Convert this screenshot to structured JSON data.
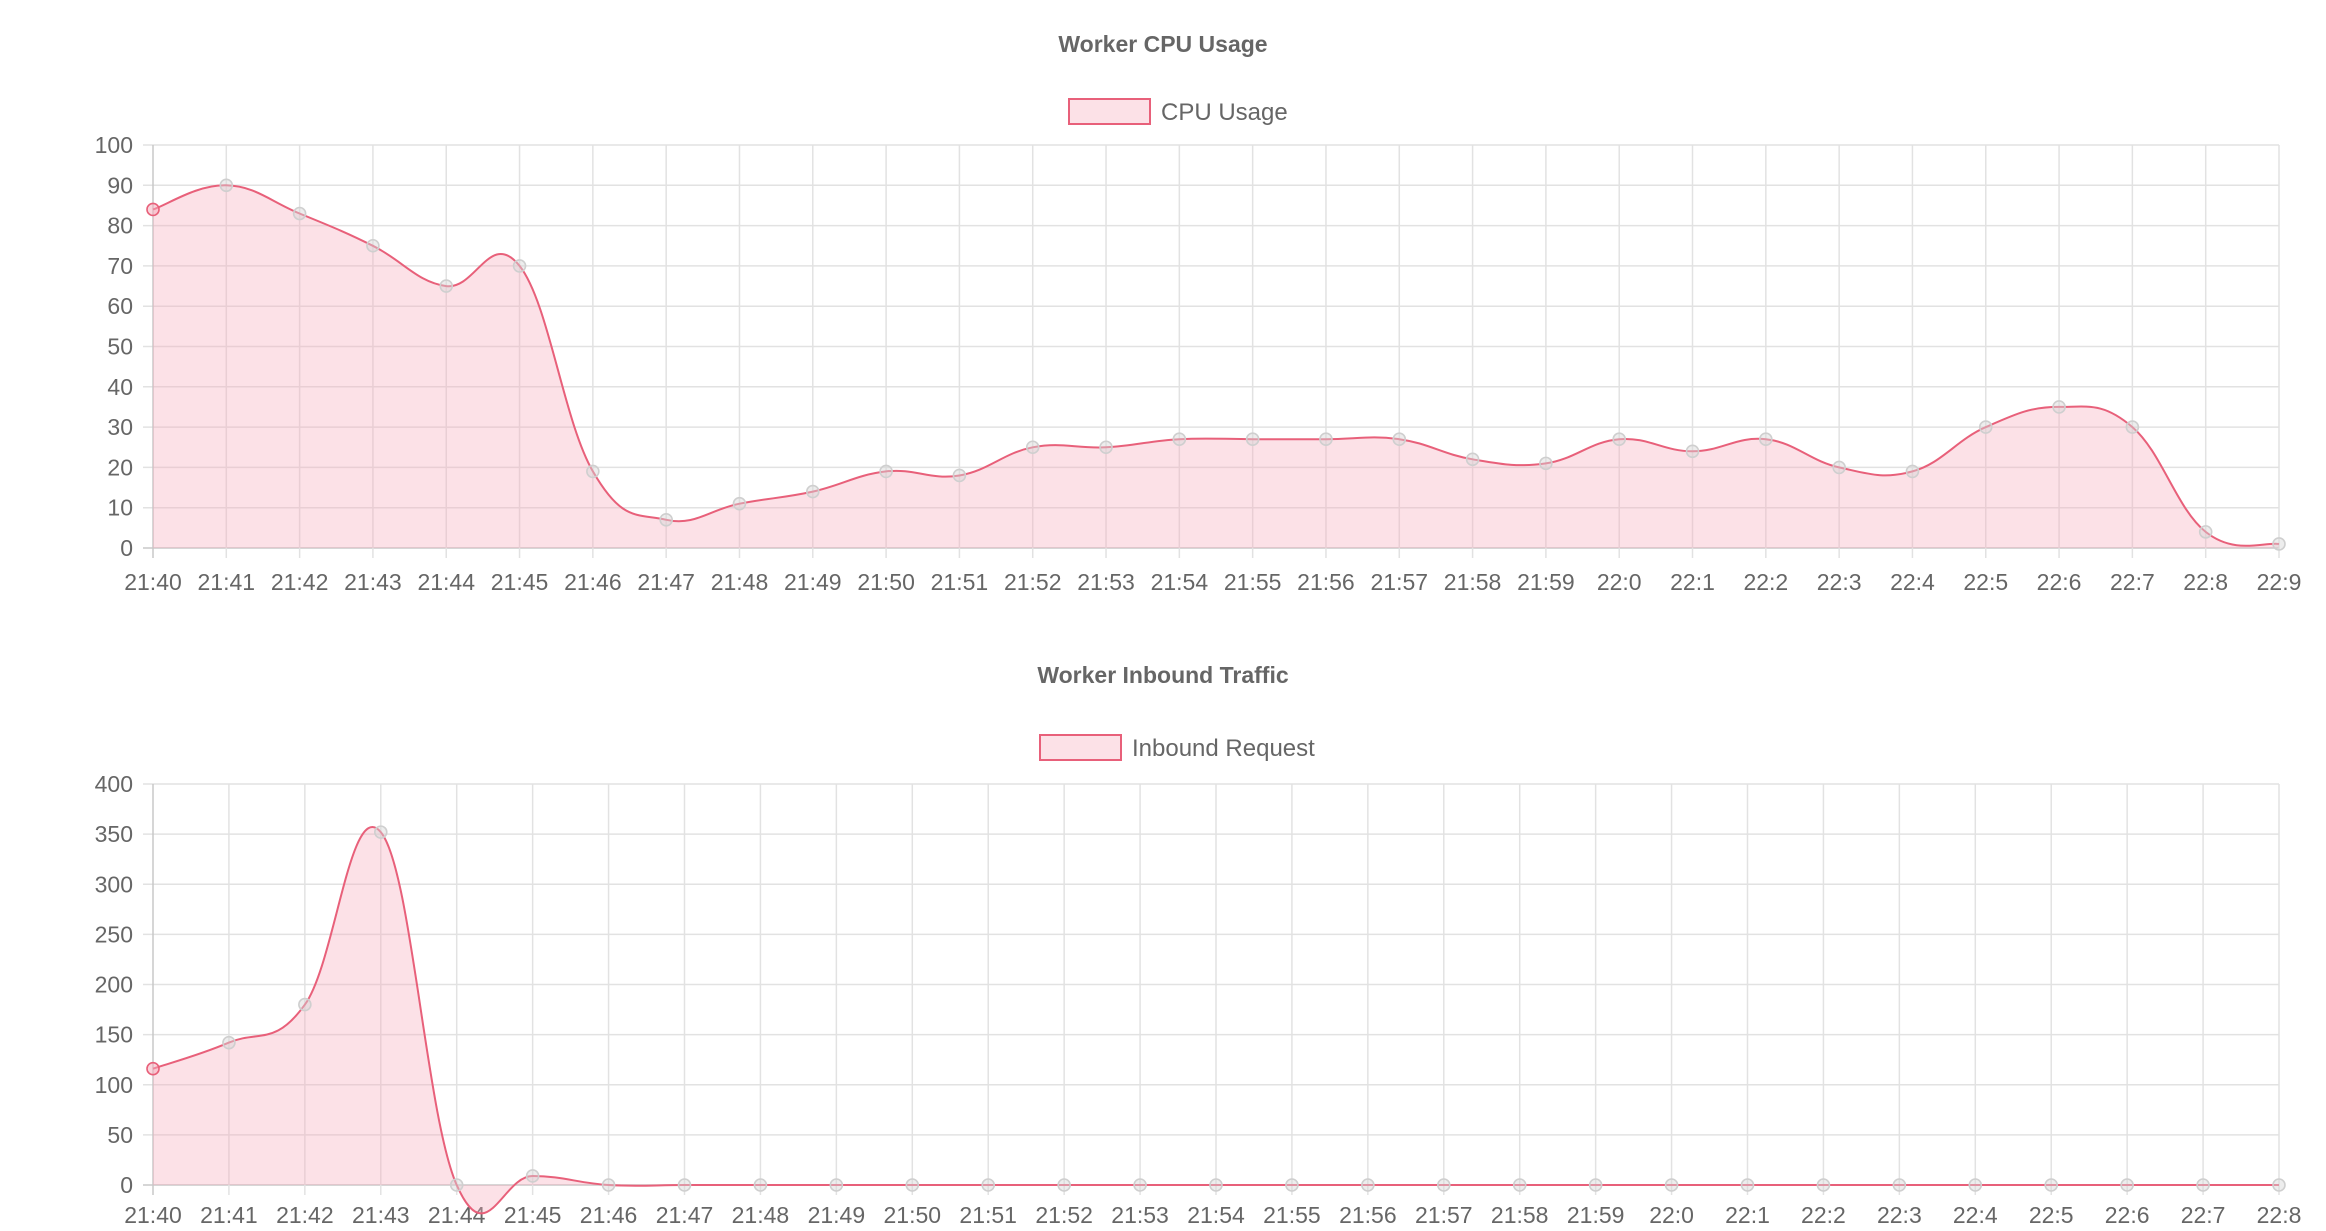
{
  "colors": {
    "line": "#e8607a",
    "fill": "rgba(245, 170, 185, 0.35)",
    "point": "#d9d9d9",
    "grid": "#e2e2e2",
    "text": "#666666"
  },
  "chart_data": [
    {
      "id": "cpu",
      "type": "area",
      "title": "Worker CPU Usage",
      "legend_position": "top",
      "grid": true,
      "categories": [
        "21:40",
        "21:41",
        "21:42",
        "21:43",
        "21:44",
        "21:45",
        "21:46",
        "21:47",
        "21:48",
        "21:49",
        "21:50",
        "21:51",
        "21:52",
        "21:53",
        "21:54",
        "21:55",
        "21:56",
        "21:57",
        "21:58",
        "21:59",
        "22:0",
        "22:1",
        "22:2",
        "22:3",
        "22:4",
        "22:5",
        "22:6",
        "22:7",
        "22:8",
        "22:9"
      ],
      "ylim": [
        0,
        100
      ],
      "yticks": [
        0,
        10,
        20,
        30,
        40,
        50,
        60,
        70,
        80,
        90,
        100
      ],
      "series": [
        {
          "name": "CPU Usage",
          "values": [
            84,
            90,
            83,
            75,
            65,
            70,
            19,
            7,
            11,
            14,
            19,
            18,
            25,
            25,
            27,
            27,
            27,
            27,
            22,
            21,
            27,
            24,
            27,
            20,
            19,
            30,
            35,
            30,
            4,
            1
          ]
        }
      ]
    },
    {
      "id": "traffic",
      "type": "area",
      "title": "Worker Inbound Traffic",
      "legend_position": "top",
      "grid": true,
      "categories": [
        "21:40",
        "21:41",
        "21:42",
        "21:43",
        "21:44",
        "21:45",
        "21:46",
        "21:47",
        "21:48",
        "21:49",
        "21:50",
        "21:51",
        "21:52",
        "21:53",
        "21:54",
        "21:55",
        "21:56",
        "21:57",
        "21:58",
        "21:59",
        "22:0",
        "22:1",
        "22:2",
        "22:3",
        "22:4",
        "22:5",
        "22:6",
        "22:7",
        "22:8"
      ],
      "ylim": [
        0,
        400
      ],
      "yticks": [
        0,
        50,
        100,
        150,
        200,
        250,
        300,
        350,
        400
      ],
      "series": [
        {
          "name": "Inbound Request",
          "values": [
            116,
            142,
            180,
            352,
            0,
            9,
            0,
            0,
            0,
            0,
            0,
            0,
            0,
            0,
            0,
            0,
            0,
            0,
            0,
            0,
            0,
            0,
            0,
            0,
            0,
            0,
            0,
            0,
            0
          ]
        }
      ]
    }
  ]
}
